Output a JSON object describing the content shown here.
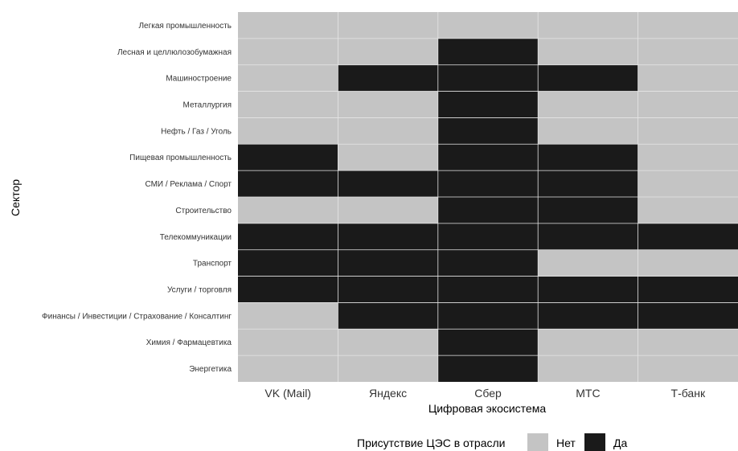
{
  "chart_data": {
    "type": "heatmap",
    "xlabel": "Цифровая экосистема",
    "ylabel": "Сектор",
    "x_categories": [
      "VK (Mail)",
      "Яндекс",
      "Сбер",
      "МТС",
      "Т-банк"
    ],
    "y_categories": [
      "Легкая промышленность",
      "Лесная и целлюлозобумажная",
      "Машиностроение",
      "Металлургия",
      "Нефть / Газ / Уголь",
      "Пищевая промышленность",
      "СМИ / Реклама / Спорт",
      "Строительство",
      "Телекоммуникации",
      "Транспорт",
      "Услуги / торговля",
      "Финансы / Инвестиции / Страхование / Консалтинг",
      "Химия / Фармацевтика",
      "Энергетика"
    ],
    "values": [
      [
        0,
        0,
        0,
        0,
        0
      ],
      [
        0,
        0,
        1,
        0,
        0
      ],
      [
        0,
        1,
        1,
        1,
        0
      ],
      [
        0,
        0,
        1,
        0,
        0
      ],
      [
        0,
        0,
        1,
        0,
        0
      ],
      [
        1,
        0,
        1,
        1,
        0
      ],
      [
        1,
        1,
        1,
        1,
        0
      ],
      [
        0,
        0,
        1,
        1,
        0
      ],
      [
        1,
        1,
        1,
        1,
        1
      ],
      [
        1,
        1,
        1,
        0,
        0
      ],
      [
        1,
        1,
        1,
        1,
        1
      ],
      [
        0,
        1,
        1,
        1,
        1
      ],
      [
        0,
        0,
        1,
        0,
        0
      ],
      [
        0,
        0,
        1,
        0,
        0
      ]
    ],
    "legend": {
      "title": "Присутствие ЦЭС в отрасли",
      "position": "bottom",
      "items": [
        {
          "label": "Нет",
          "value": 0,
          "color": "#c4c4c4"
        },
        {
          "label": "Да",
          "value": 1,
          "color": "#1a1a1a"
        }
      ]
    },
    "colors": {
      "absent": "#c4c4c4",
      "present": "#1a1a1a",
      "gridline": "#e6e6e6"
    },
    "grid": true
  }
}
